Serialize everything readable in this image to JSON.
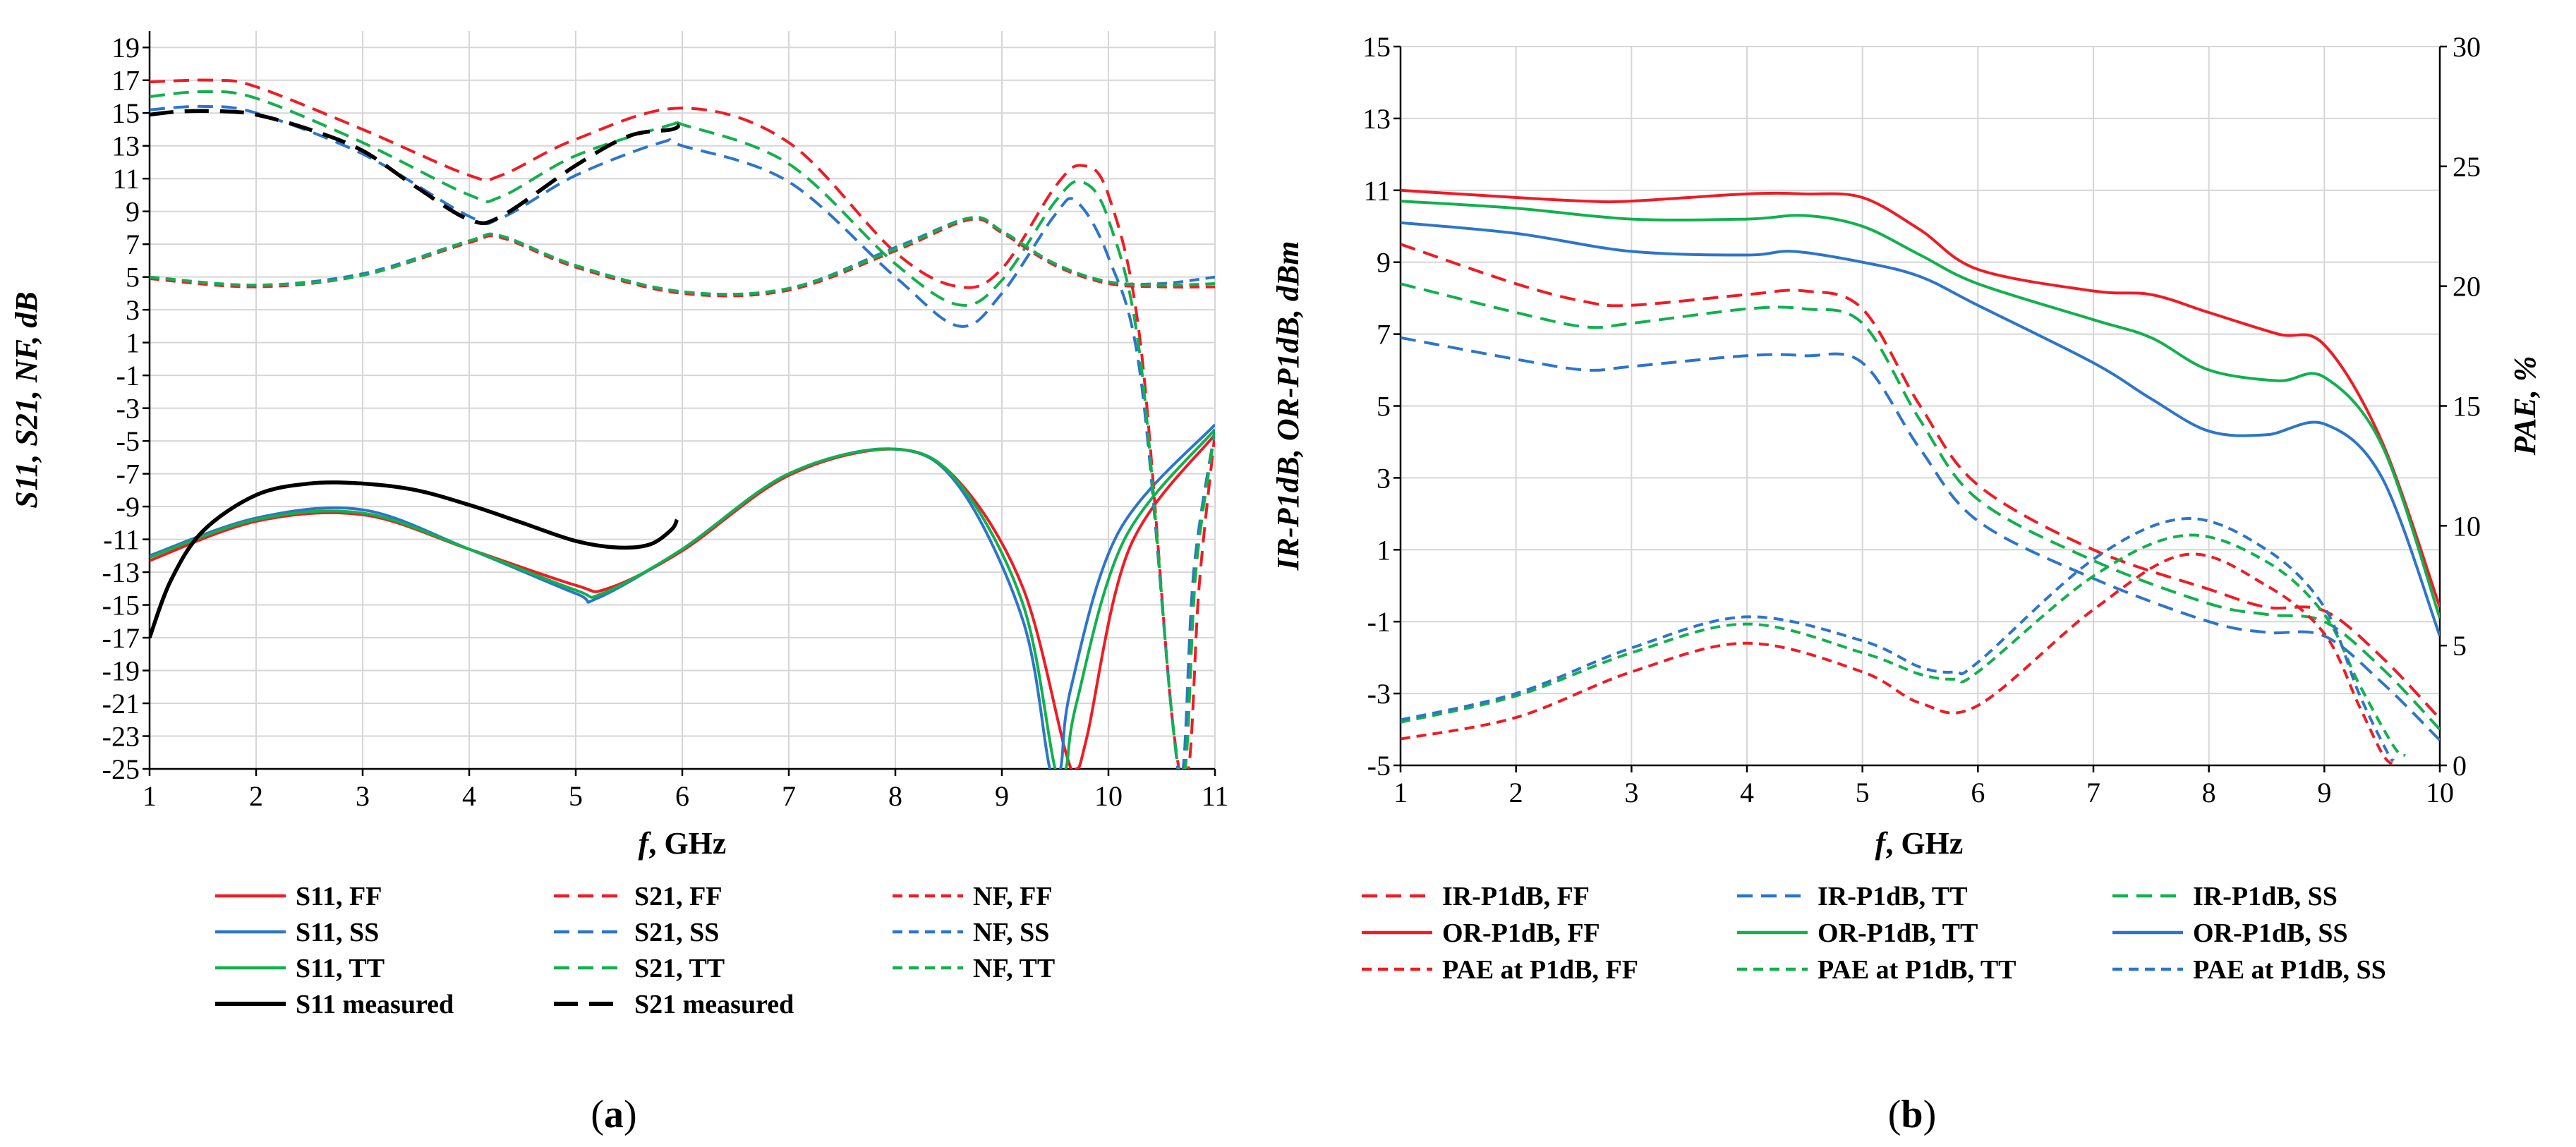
{
  "colors": {
    "ff": "#ee1c25",
    "ss": "#2e75c9",
    "tt": "#12b04e",
    "measured": "#000000",
    "grid": "#d6d6d6"
  },
  "panels": {
    "a": {
      "label_open": "(",
      "label_letter": "a",
      "label_close": ")"
    },
    "b": {
      "label_open": "(",
      "label_letter": "b",
      "label_close": ")"
    }
  },
  "chart_data": [
    {
      "type": "line",
      "xlabel": {
        "italic": "f",
        "rest": ", GHz"
      },
      "ylabel": "S11, S21, NF, dB",
      "xlim": [
        1,
        11
      ],
      "ylim": [
        -25,
        20
      ],
      "xticks": [
        "1",
        "2",
        "3",
        "4",
        "5",
        "6",
        "7",
        "8",
        "9",
        "10",
        "11"
      ],
      "yticks": [
        "19",
        "17",
        "15",
        "13",
        "11",
        "9",
        "7",
        "5",
        "3",
        "1",
        "-1",
        "-3",
        "-5",
        "-7",
        "-9",
        "-11",
        "-13",
        "-15",
        "-17",
        "-19",
        "-21",
        "-23",
        "-25"
      ],
      "grid": true,
      "legend_position": "bottom",
      "series": [
        {
          "name": "S11, FF",
          "color": "ff",
          "dash": "solid",
          "x": [
            1,
            2,
            3,
            4,
            5,
            5.3,
            6,
            7,
            8,
            8.6,
            9.2,
            9.6,
            9.7,
            9.8,
            10.2,
            11
          ],
          "y": [
            -12.3,
            -9.9,
            -9.5,
            -11.6,
            -13.8,
            -14,
            -11.7,
            -7.1,
            -5.5,
            -7.5,
            -14,
            -24,
            -25,
            -23,
            -11.5,
            -4.6
          ]
        },
        {
          "name": "S11, SS",
          "color": "ss",
          "dash": "solid",
          "x": [
            1,
            2,
            3,
            4,
            5,
            5.2,
            6,
            7,
            8,
            8.6,
            9.2,
            9.45,
            9.55,
            9.65,
            10.1,
            11
          ],
          "y": [
            -12,
            -9.7,
            -9.2,
            -11.6,
            -14.3,
            -14.6,
            -11.6,
            -7,
            -5.5,
            -7.8,
            -16,
            -25,
            -25,
            -20,
            -10.5,
            -4
          ]
        },
        {
          "name": "S11, TT",
          "color": "tt",
          "dash": "solid",
          "x": [
            1,
            2,
            3,
            4,
            5,
            5.25,
            6,
            7,
            8,
            8.6,
            9.2,
            9.5,
            9.6,
            9.7,
            10.15,
            11
          ],
          "y": [
            -12.1,
            -9.8,
            -9.4,
            -11.6,
            -14.1,
            -14.3,
            -11.6,
            -7,
            -5.5,
            -7.6,
            -15,
            -25,
            -25,
            -21,
            -11,
            -4.3
          ]
        },
        {
          "name": "S21, FF",
          "color": "ff",
          "dash": "dash",
          "x": [
            1,
            1.6,
            2,
            3,
            4,
            4.3,
            5,
            6,
            7,
            8,
            8.6,
            9,
            9.5,
            9.75,
            10,
            10.3,
            10.6,
            10.75,
            10.85,
            11
          ],
          "y": [
            16.9,
            17,
            16.6,
            14,
            11.2,
            11.2,
            13.4,
            15.3,
            13.2,
            6.5,
            4.4,
            5.5,
            10.5,
            11.8,
            10,
            1,
            -22,
            -25,
            -14,
            -4.5
          ]
        },
        {
          "name": "S21, SS",
          "color": "ss",
          "dash": "dash",
          "x": [
            1,
            1.5,
            2,
            3,
            4,
            4.3,
            5,
            5.8,
            6,
            7,
            8,
            8.6,
            9,
            9.5,
            9.7,
            10,
            10.3,
            10.6,
            10.7,
            10.8,
            11
          ],
          "y": [
            15.2,
            15.4,
            15,
            12.5,
            8.7,
            8.6,
            11.2,
            13.2,
            13,
            10.8,
            5,
            2,
            4,
            8.8,
            9.6,
            6.2,
            -1,
            -22,
            -25,
            -13,
            -4.3
          ]
        },
        {
          "name": "S21, TT",
          "color": "tt",
          "dash": "dash",
          "x": [
            1,
            1.5,
            2,
            3,
            4,
            4.3,
            5,
            5.9,
            6,
            7,
            8,
            8.6,
            9,
            9.5,
            9.75,
            10,
            10.3,
            10.6,
            10.72,
            10.82,
            11
          ],
          "y": [
            16,
            16.3,
            15.9,
            13.2,
            10,
            9.9,
            12.4,
            14.3,
            14.3,
            11.9,
            5.8,
            3.3,
            4.8,
            9.6,
            10.8,
            8.5,
            0,
            -22,
            -25,
            -13,
            -4.4
          ]
        },
        {
          "name": "NF, FF",
          "color": "ff",
          "dash": "dot",
          "x": [
            1,
            2,
            3,
            4,
            4.3,
            5,
            6,
            7,
            8,
            8.7,
            9,
            9.5,
            10,
            10.5,
            11
          ],
          "y": [
            4.9,
            4.4,
            5.1,
            7.1,
            7.4,
            5.6,
            4,
            4.2,
            6.6,
            8.5,
            7.7,
            5.7,
            4.6,
            4.4,
            4.4
          ]
        },
        {
          "name": "NF, SS",
          "color": "ss",
          "dash": "dot",
          "x": [
            1,
            2,
            3,
            4,
            4.3,
            5,
            6,
            7,
            8,
            8.7,
            9,
            9.5,
            10,
            10.5,
            11
          ],
          "y": [
            5,
            4.5,
            5.2,
            7.2,
            7.5,
            5.7,
            4.1,
            4.3,
            6.8,
            8.6,
            7.8,
            5.8,
            4.7,
            4.6,
            5
          ]
        },
        {
          "name": "NF, TT",
          "color": "tt",
          "dash": "dot",
          "x": [
            1,
            2,
            3,
            4,
            4.3,
            5,
            6,
            7,
            8,
            8.7,
            9,
            9.5,
            10,
            10.5,
            11
          ],
          "y": [
            5,
            4.5,
            5.1,
            7.2,
            7.5,
            5.7,
            4.1,
            4.3,
            6.7,
            8.6,
            7.8,
            5.8,
            4.7,
            4.5,
            4.6
          ]
        },
        {
          "name": "S11 measured",
          "color": "measured",
          "dash": "solid",
          "x": [
            1,
            1.2,
            1.5,
            2,
            2.5,
            3,
            3.5,
            4,
            4.5,
            5,
            5.4,
            5.7,
            5.9,
            5.95
          ],
          "y": [
            -17,
            -13.5,
            -10.5,
            -8.3,
            -7.6,
            -7.6,
            -8,
            -8.9,
            -10,
            -11.1,
            -11.5,
            -11.3,
            -10.4,
            -9.8
          ]
        },
        {
          "name": "S21 measured",
          "color": "measured",
          "dash": "longdash",
          "x": [
            1,
            1.3,
            1.7,
            2,
            2.5,
            3,
            3.5,
            4,
            4.3,
            5,
            5.5,
            5.9,
            5.97
          ],
          "y": [
            14.9,
            15.1,
            15.1,
            14.9,
            14,
            12.7,
            10.5,
            8.5,
            8.7,
            11.8,
            13.6,
            14,
            14.3
          ]
        }
      ]
    },
    {
      "type": "line",
      "xlabel": {
        "italic": "f",
        "rest": ", GHz"
      },
      "ylabel": "IR-P1dB, OR-P1dB, dBm",
      "y2label": "PAE, %",
      "xlim": [
        1,
        10
      ],
      "ylim": [
        -5,
        15
      ],
      "y2lim": [
        0,
        30
      ],
      "xticks": [
        "1",
        "2",
        "3",
        "4",
        "5",
        "6",
        "7",
        "8",
        "9",
        "10"
      ],
      "yticks": [
        "15",
        "13",
        "11",
        "9",
        "7",
        "5",
        "3",
        "1",
        "-1",
        "-3",
        "-5"
      ],
      "y2ticks": [
        "30",
        "25",
        "20",
        "15",
        "10",
        "5",
        "0"
      ],
      "grid": true,
      "legend_position": "bottom",
      "series": [
        {
          "name": "IR-P1dB, FF",
          "color": "ff",
          "dash": "dash",
          "axis": "left",
          "x": [
            1,
            2,
            2.6,
            3,
            4,
            4.5,
            5,
            5.5,
            6,
            7,
            8,
            8.5,
            9,
            9.5,
            10
          ],
          "y": [
            9.5,
            8.4,
            7.9,
            7.8,
            8.1,
            8.2,
            7.7,
            5,
            2.8,
            1,
            -0.1,
            -0.6,
            -0.7,
            -2,
            -3.7
          ]
        },
        {
          "name": "IR-P1dB, TT",
          "color": "ss",
          "dash": "dash",
          "axis": "left",
          "x": [
            1,
            2,
            2.6,
            3,
            4,
            4.5,
            5,
            5.5,
            6,
            7,
            8,
            8.5,
            9,
            9.5,
            10
          ],
          "y": [
            6.9,
            6.3,
            6,
            6.1,
            6.4,
            6.4,
            6.2,
            3.8,
            1.8,
            0.2,
            -1,
            -1.3,
            -1.4,
            -2.7,
            -4.3
          ]
        },
        {
          "name": "IR-P1dB, SS",
          "color": "tt",
          "dash": "dash",
          "axis": "left",
          "x": [
            1,
            2,
            2.6,
            3,
            4,
            4.5,
            5,
            5.5,
            6,
            7,
            8,
            8.5,
            9,
            9.5,
            10
          ],
          "y": [
            8.4,
            7.6,
            7.2,
            7.3,
            7.7,
            7.7,
            7.3,
            4.6,
            2.4,
            0.7,
            -0.5,
            -0.8,
            -1,
            -2.3,
            -4
          ]
        },
        {
          "name": "OR-P1dB, FF",
          "color": "ff",
          "dash": "solid",
          "axis": "left",
          "x": [
            1,
            2,
            2.6,
            3,
            4,
            4.5,
            5,
            5.5,
            6,
            7,
            7.5,
            8,
            8.6,
            9,
            9.5,
            10
          ],
          "y": [
            11,
            10.8,
            10.7,
            10.7,
            10.9,
            10.9,
            10.8,
            9.9,
            8.8,
            8.2,
            8.1,
            7.6,
            7,
            6.7,
            4,
            -0.6
          ]
        },
        {
          "name": "OR-P1dB, TT",
          "color": "tt",
          "dash": "solid",
          "axis": "left",
          "x": [
            1,
            2,
            3,
            4,
            4.5,
            5,
            5.5,
            6,
            7,
            7.5,
            8,
            8.6,
            9,
            9.5,
            10
          ],
          "y": [
            10.7,
            10.5,
            10.2,
            10.2,
            10.3,
            10,
            9.2,
            8.4,
            7.4,
            6.9,
            6,
            5.7,
            5.8,
            3.9,
            -0.9
          ]
        },
        {
          "name": "OR-P1dB, SS",
          "color": "ss",
          "dash": "solid",
          "axis": "left",
          "x": [
            1,
            2,
            3,
            4,
            4.4,
            5,
            5.5,
            6,
            7,
            7.5,
            8,
            8.5,
            9,
            9.5,
            10
          ],
          "y": [
            10.1,
            9.8,
            9.3,
            9.2,
            9.3,
            9,
            8.6,
            7.8,
            6.2,
            5.2,
            4.3,
            4.2,
            4.5,
            3,
            -1.4
          ]
        },
        {
          "name": "PAE at P1dB, FF",
          "color": "ff",
          "dash": "dot",
          "axis": "right",
          "x": [
            1,
            2,
            3,
            4,
            5,
            5.5,
            6,
            7,
            7.8,
            8.5,
            9,
            9.3,
            9.5,
            9.6
          ],
          "y": [
            1.1,
            2,
            3.9,
            5.1,
            3.9,
            2.6,
            2.5,
            6.5,
            8.8,
            7.5,
            5.5,
            2.5,
            0.5,
            0
          ]
        },
        {
          "name": "PAE at P1dB, TT",
          "color": "tt",
          "dash": "dot",
          "axis": "right",
          "x": [
            1,
            2,
            3,
            4,
            5,
            5.5,
            5.8,
            6,
            7,
            7.8,
            8.5,
            9,
            9.3,
            9.6,
            9.7
          ],
          "y": [
            1.8,
            2.9,
            4.7,
            5.9,
            4.7,
            3.8,
            3.6,
            3.9,
            7.9,
            9.6,
            8.5,
            6.3,
            3.4,
            0.8,
            0.4
          ]
        },
        {
          "name": "PAE at P1dB, SS",
          "color": "ss",
          "dash": "dot",
          "axis": "right",
          "x": [
            1,
            2,
            3,
            4,
            5,
            5.5,
            5.8,
            6,
            7,
            7.8,
            8.5,
            9,
            9.3,
            9.55,
            9.6
          ],
          "y": [
            1.9,
            3,
            4.9,
            6.2,
            5.2,
            4.1,
            3.9,
            4.3,
            8.6,
            10.3,
            9,
            6.6,
            3,
            0.5,
            0.2
          ]
        }
      ]
    }
  ]
}
